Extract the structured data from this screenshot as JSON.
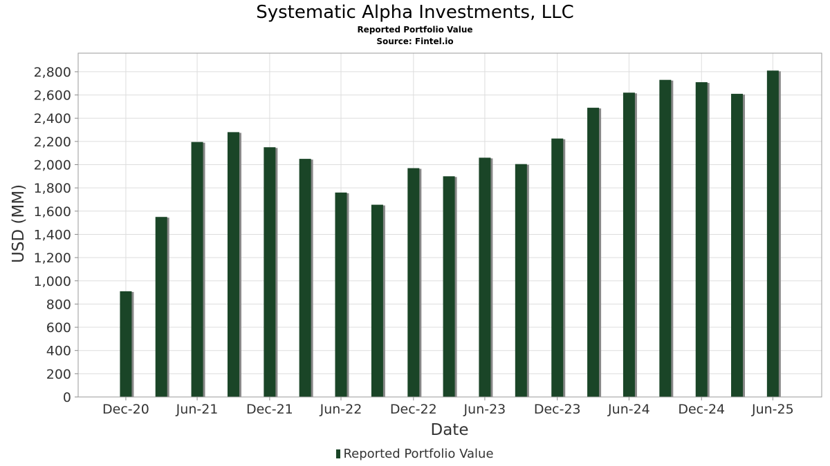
{
  "chart_data": {
    "type": "bar",
    "title": "Systematic Alpha Investments, LLC",
    "subtitle": [
      "Reported Portfolio Value",
      "Source: Fintel.io"
    ],
    "xlabel": "Date",
    "ylabel": "USD (MM)",
    "ylim": [
      0,
      2960
    ],
    "yticks": [
      0,
      200,
      400,
      600,
      800,
      1000,
      1200,
      1400,
      1600,
      1800,
      2000,
      2200,
      2400,
      2600,
      2800
    ],
    "ytick_labels": [
      "0",
      "200",
      "400",
      "600",
      "800",
      "1,000",
      "1,200",
      "1,400",
      "1,600",
      "1,800",
      "2,000",
      "2,200",
      "2,400",
      "2,600",
      "2,800"
    ],
    "xticks": [
      {
        "label": "Dec-20",
        "date": "2020-12-31"
      },
      {
        "label": "Jun-21",
        "date": "2021-06-30"
      },
      {
        "label": "Dec-21",
        "date": "2021-12-31"
      },
      {
        "label": "Jun-22",
        "date": "2022-06-30"
      },
      {
        "label": "Dec-22",
        "date": "2022-12-31"
      },
      {
        "label": "Jun-23",
        "date": "2023-06-30"
      },
      {
        "label": "Dec-23",
        "date": "2023-12-31"
      },
      {
        "label": "Jun-24",
        "date": "2024-06-30"
      },
      {
        "label": "Dec-24",
        "date": "2024-12-31"
      },
      {
        "label": "Jun-25",
        "date": "2025-06-30"
      }
    ],
    "x_range": [
      "2020-09-01",
      "2025-11-01"
    ],
    "grid": true,
    "legend_position": "bottom",
    "series": [
      {
        "name": "Reported Portfolio Value",
        "color": "#1a4527",
        "x": [
          "2020-12-31",
          "2021-03-31",
          "2021-06-30",
          "2021-09-30",
          "2021-12-31",
          "2022-03-31",
          "2022-06-30",
          "2022-09-30",
          "2022-12-31",
          "2023-03-31",
          "2023-06-30",
          "2023-09-30",
          "2023-12-31",
          "2024-03-31",
          "2024-06-30",
          "2024-09-30",
          "2024-12-31",
          "2025-03-31",
          "2025-06-30"
        ],
        "values": [
          910,
          1550,
          2195,
          2280,
          2150,
          2050,
          1760,
          1655,
          1970,
          1900,
          2060,
          2005,
          2225,
          2490,
          2620,
          2730,
          2710,
          2610,
          2810
        ]
      }
    ]
  },
  "legend_label": "Reported Portfolio Value"
}
